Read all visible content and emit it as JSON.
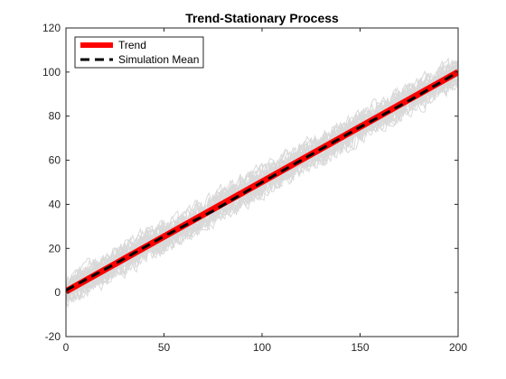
{
  "chart_data": {
    "type": "line",
    "title": "Trend-Stationary Process",
    "xlabel": "",
    "ylabel": "",
    "xlim": [
      0,
      200
    ],
    "ylim": [
      -20,
      120
    ],
    "xticks": [
      0,
      50,
      100,
      150,
      200
    ],
    "yticks": [
      -20,
      0,
      20,
      40,
      60,
      80,
      100,
      120
    ],
    "grid": false,
    "legend_position": "top-left",
    "series": [
      {
        "name": "Trend",
        "color": "#ff0000",
        "style": "solid",
        "x": [
          0,
          200
        ],
        "values": [
          0.5,
          100
        ]
      },
      {
        "name": "Simulation Mean",
        "color": "#000000",
        "style": "dashed",
        "x": [
          0,
          25,
          50,
          75,
          100,
          125,
          150,
          175,
          200
        ],
        "values": [
          1,
          13,
          25.5,
          37,
          50,
          62.5,
          75,
          87,
          100
        ]
      }
    ],
    "simulations": {
      "color": "#d9d9d9",
      "count": 30,
      "band_halfwidth": 9,
      "x_range": [
        0,
        200
      ],
      "center_start": 0.5,
      "center_end": 100
    }
  }
}
